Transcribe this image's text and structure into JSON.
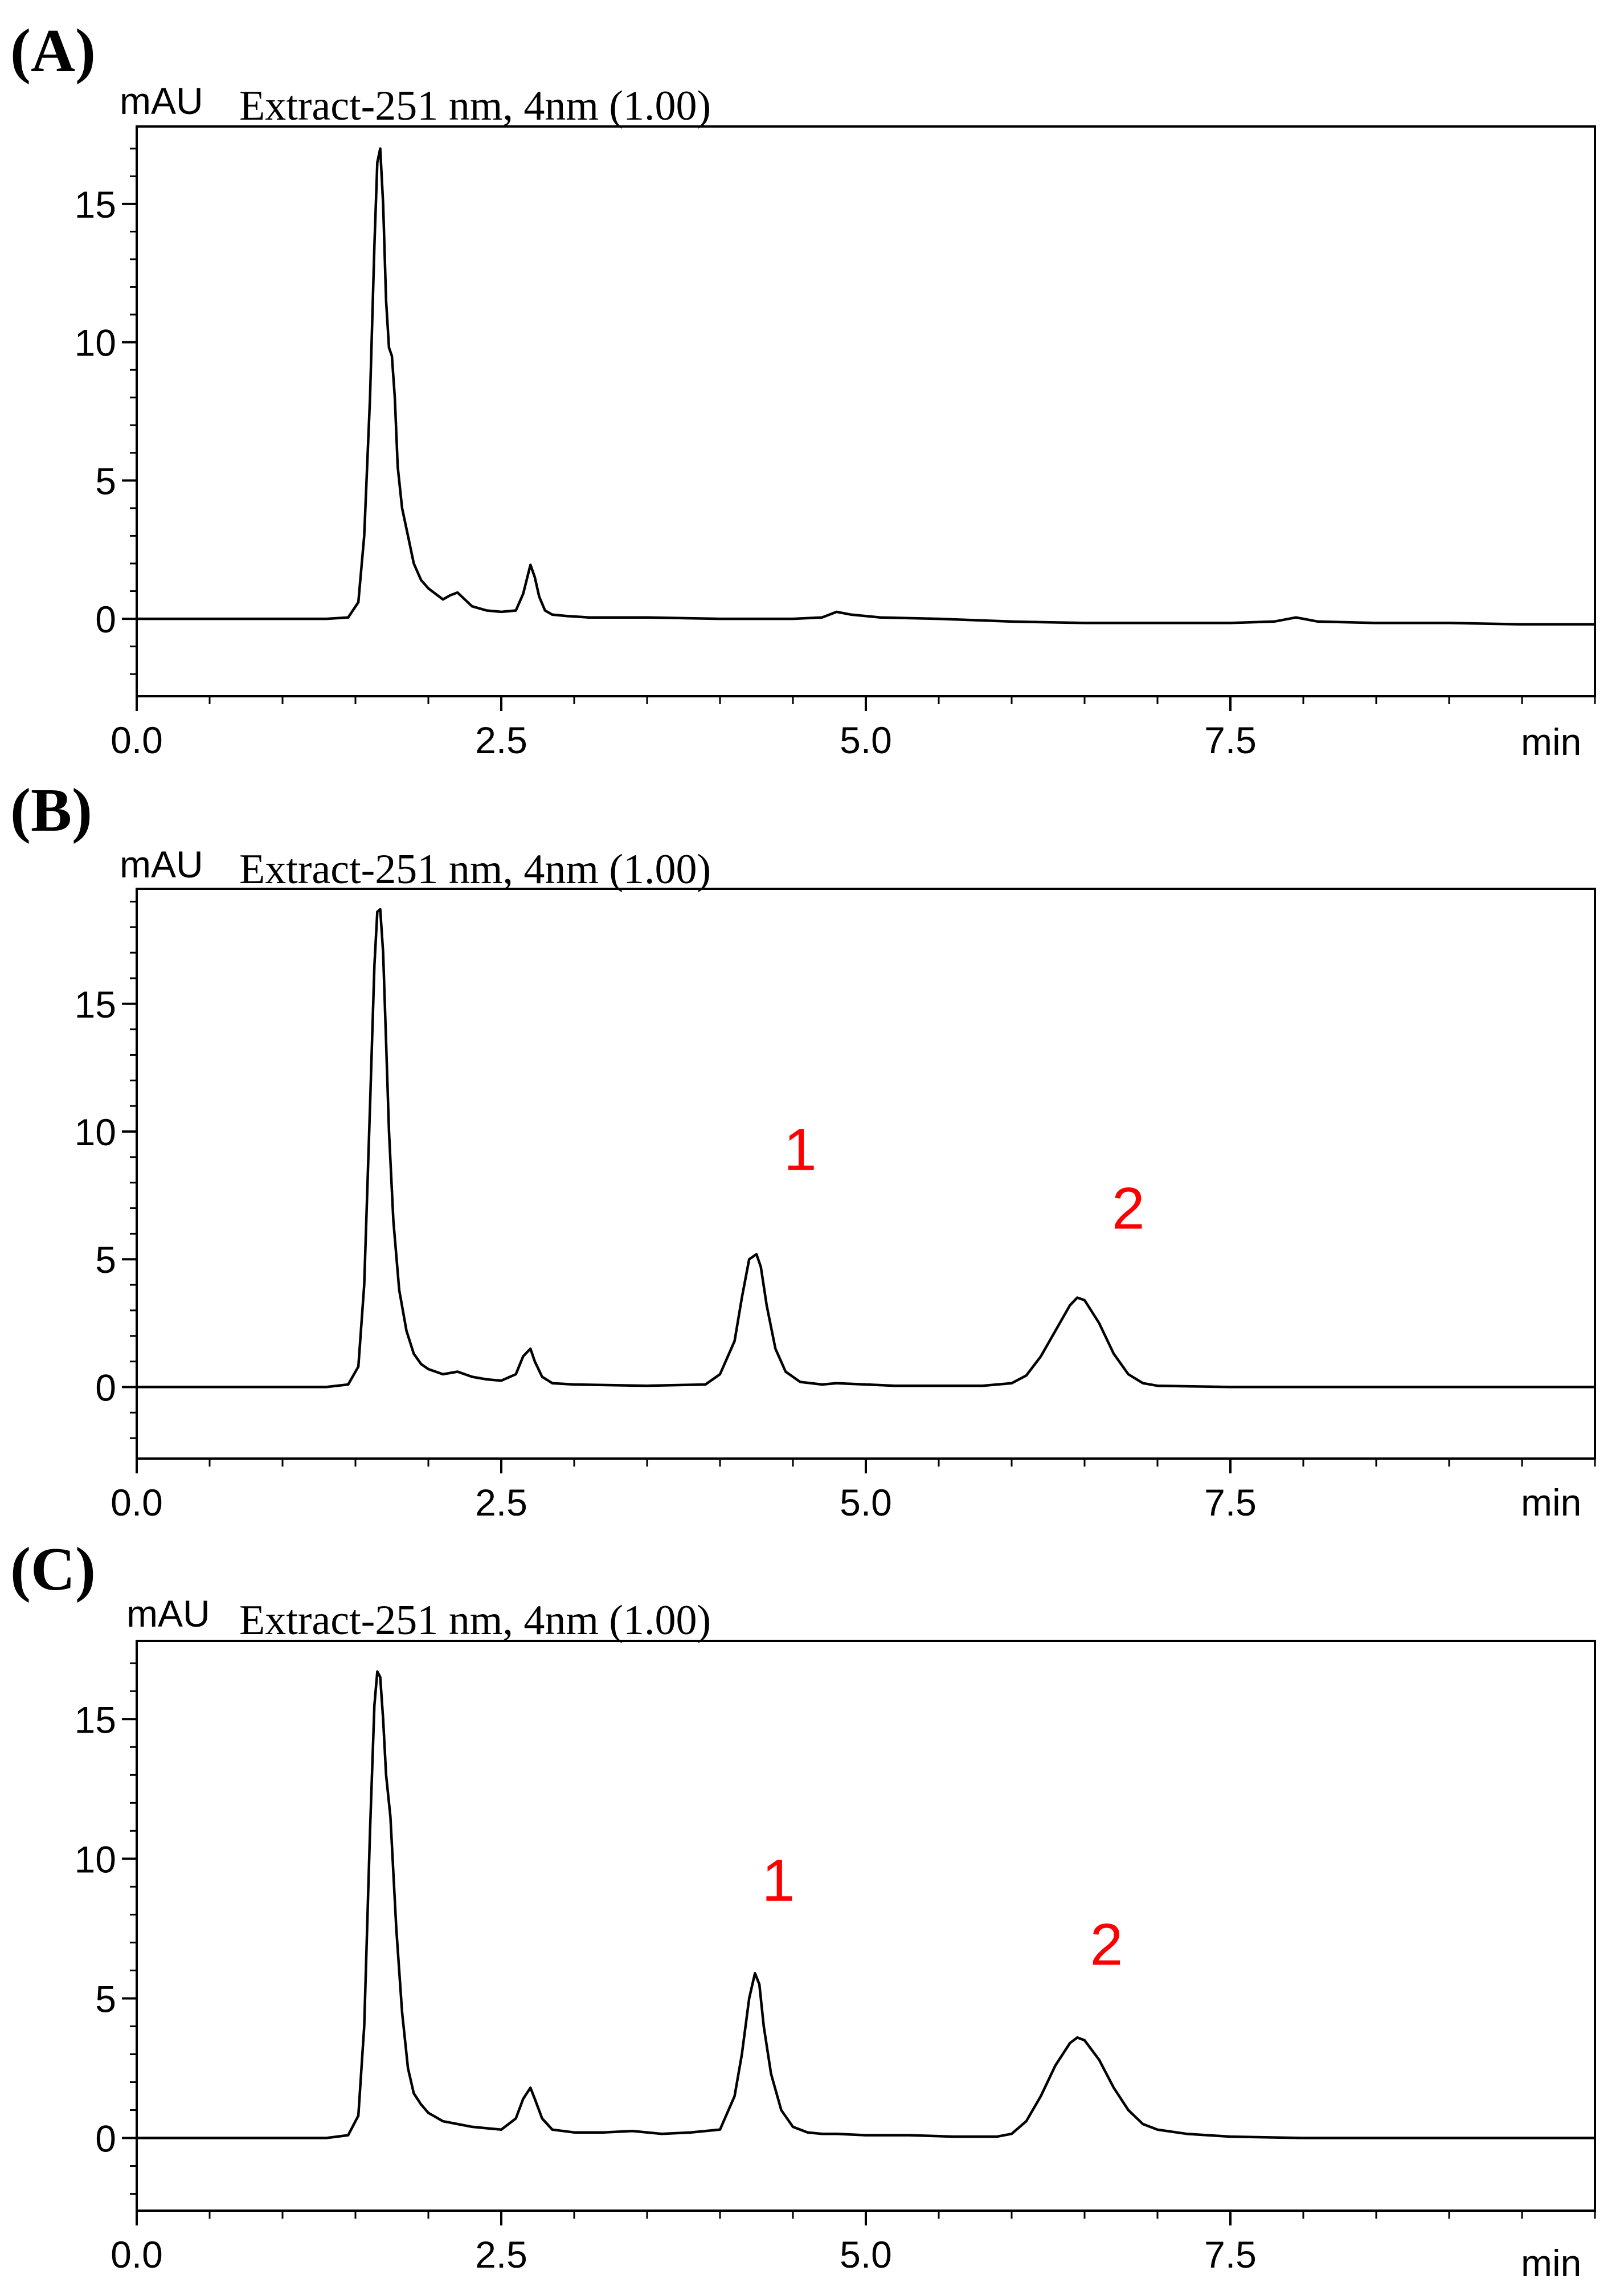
{
  "chart_data": [
    {
      "type": "line",
      "panel_label": "(A)",
      "ylabel": "mAU",
      "series_label": "Extract-251 nm, 4nm (1.00)",
      "xlabel": "min",
      "xlim": [
        0,
        10
      ],
      "ylim": [
        -2.8,
        17.8
      ],
      "xticks": [
        "0.0",
        "2.5",
        "5.0",
        "7.5"
      ],
      "xtick_values": [
        0,
        2.5,
        5.0,
        7.5
      ],
      "yticks": [
        "0",
        "5",
        "10",
        "15"
      ],
      "ytick_values": [
        0,
        5,
        10,
        15
      ],
      "x": [
        0.0,
        0.5,
        1.0,
        1.3,
        1.45,
        1.52,
        1.56,
        1.6,
        1.63,
        1.65,
        1.67,
        1.69,
        1.71,
        1.73,
        1.75,
        1.77,
        1.79,
        1.82,
        1.86,
        1.9,
        1.95,
        2.0,
        2.05,
        2.1,
        2.15,
        2.2,
        2.25,
        2.3,
        2.4,
        2.5,
        2.6,
        2.65,
        2.7,
        2.73,
        2.76,
        2.8,
        2.85,
        2.95,
        3.1,
        3.5,
        4.0,
        4.5,
        4.7,
        4.8,
        4.9,
        5.1,
        5.5,
        6.0,
        6.5,
        7.0,
        7.5,
        7.8,
        7.95,
        8.1,
        8.5,
        9.0,
        9.5,
        10.0
      ],
      "values": [
        0.0,
        0.0,
        0.0,
        0.0,
        0.05,
        0.6,
        3.0,
        8.0,
        13.5,
        16.5,
        17.0,
        15.0,
        11.5,
        9.8,
        9.5,
        8.0,
        5.5,
        4.0,
        3.0,
        2.0,
        1.4,
        1.1,
        0.9,
        0.7,
        0.85,
        0.95,
        0.7,
        0.45,
        0.3,
        0.25,
        0.3,
        0.9,
        1.95,
        1.5,
        0.8,
        0.3,
        0.15,
        0.1,
        0.05,
        0.05,
        0.0,
        0.0,
        0.05,
        0.25,
        0.15,
        0.05,
        0.0,
        -0.1,
        -0.15,
        -0.15,
        -0.15,
        -0.1,
        0.05,
        -0.1,
        -0.15,
        -0.15,
        -0.2,
        -0.2
      ],
      "peak_labels": []
    },
    {
      "type": "line",
      "panel_label": "(B)",
      "ylabel": "mAU",
      "series_label": "Extract-251 nm, 4nm (1.00)",
      "xlabel": "min",
      "xlim": [
        0,
        10
      ],
      "ylim": [
        -2.8,
        19.5
      ],
      "xticks": [
        "0.0",
        "2.5",
        "5.0",
        "7.5"
      ],
      "xtick_values": [
        0,
        2.5,
        5.0,
        7.5
      ],
      "yticks": [
        "0",
        "5",
        "10",
        "15"
      ],
      "ytick_values": [
        0,
        5,
        10,
        15
      ],
      "x": [
        0.0,
        0.5,
        1.0,
        1.3,
        1.45,
        1.52,
        1.56,
        1.6,
        1.63,
        1.65,
        1.67,
        1.69,
        1.71,
        1.73,
        1.76,
        1.8,
        1.85,
        1.9,
        1.95,
        2.0,
        2.1,
        2.2,
        2.3,
        2.4,
        2.5,
        2.6,
        2.65,
        2.7,
        2.73,
        2.78,
        2.85,
        3.0,
        3.5,
        3.9,
        4.0,
        4.1,
        4.15,
        4.2,
        4.25,
        4.28,
        4.32,
        4.38,
        4.45,
        4.55,
        4.7,
        4.8,
        5.0,
        5.2,
        5.5,
        5.8,
        6.0,
        6.1,
        6.2,
        6.3,
        6.4,
        6.45,
        6.5,
        6.6,
        6.7,
        6.8,
        6.9,
        7.0,
        7.5,
        8.0,
        9.0,
        10.0
      ],
      "values": [
        0.0,
        0.0,
        0.0,
        0.0,
        0.1,
        0.8,
        4.0,
        11.0,
        16.5,
        18.6,
        18.7,
        17.0,
        13.5,
        10.0,
        6.5,
        3.8,
        2.2,
        1.3,
        0.9,
        0.7,
        0.5,
        0.6,
        0.4,
        0.3,
        0.25,
        0.5,
        1.2,
        1.5,
        1.0,
        0.4,
        0.15,
        0.1,
        0.05,
        0.1,
        0.5,
        1.8,
        3.5,
        5.0,
        5.2,
        4.7,
        3.2,
        1.5,
        0.6,
        0.2,
        0.1,
        0.15,
        0.1,
        0.05,
        0.05,
        0.05,
        0.15,
        0.45,
        1.2,
        2.2,
        3.2,
        3.5,
        3.4,
        2.5,
        1.3,
        0.5,
        0.15,
        0.05,
        0.0,
        0.0,
        0.0,
        0.0
      ],
      "peak_labels": [
        {
          "text": "1",
          "x": 4.55,
          "y": 8.5
        },
        {
          "text": "2",
          "x": 6.8,
          "y": 6.2
        }
      ]
    },
    {
      "type": "line",
      "panel_label": "(C)",
      "ylabel": "mAU",
      "series_label": "Extract-251 nm, 4nm (1.00)",
      "xlabel": "min",
      "xlim": [
        0,
        10
      ],
      "ylim": [
        -2.6,
        17.8
      ],
      "xticks": [
        "0.0",
        "2.5",
        "5.0",
        "7.5"
      ],
      "xtick_values": [
        0,
        2.5,
        5.0,
        7.5
      ],
      "yticks": [
        "0",
        "5",
        "10",
        "15"
      ],
      "ytick_values": [
        0,
        5,
        10,
        15
      ],
      "x": [
        0.0,
        0.5,
        1.0,
        1.3,
        1.45,
        1.52,
        1.56,
        1.6,
        1.63,
        1.65,
        1.67,
        1.69,
        1.71,
        1.74,
        1.78,
        1.82,
        1.86,
        1.9,
        1.95,
        2.0,
        2.1,
        2.2,
        2.3,
        2.4,
        2.5,
        2.6,
        2.65,
        2.7,
        2.73,
        2.78,
        2.85,
        3.0,
        3.2,
        3.4,
        3.6,
        3.8,
        4.0,
        4.1,
        4.15,
        4.2,
        4.24,
        4.27,
        4.3,
        4.35,
        4.42,
        4.5,
        4.6,
        4.7,
        4.8,
        5.0,
        5.3,
        5.6,
        5.9,
        6.0,
        6.1,
        6.2,
        6.3,
        6.4,
        6.45,
        6.5,
        6.6,
        6.7,
        6.8,
        6.9,
        7.0,
        7.2,
        7.5,
        8.0,
        9.0,
        10.0
      ],
      "values": [
        0.0,
        0.0,
        0.0,
        0.0,
        0.1,
        0.8,
        4.0,
        11.0,
        15.5,
        16.7,
        16.5,
        15.0,
        13.0,
        11.5,
        7.5,
        4.5,
        2.5,
        1.6,
        1.2,
        0.9,
        0.6,
        0.5,
        0.4,
        0.35,
        0.3,
        0.7,
        1.4,
        1.8,
        1.4,
        0.7,
        0.3,
        0.2,
        0.2,
        0.25,
        0.15,
        0.2,
        0.3,
        1.5,
        3.0,
        5.0,
        5.9,
        5.5,
        4.0,
        2.3,
        1.0,
        0.4,
        0.2,
        0.15,
        0.15,
        0.1,
        0.1,
        0.05,
        0.05,
        0.15,
        0.6,
        1.5,
        2.6,
        3.4,
        3.6,
        3.5,
        2.8,
        1.8,
        1.0,
        0.5,
        0.3,
        0.15,
        0.05,
        0.0,
        0.0,
        0.0
      ],
      "peak_labels": [
        {
          "text": "1",
          "x": 4.4,
          "y": 8.5
        },
        {
          "text": "2",
          "x": 6.65,
          "y": 6.2
        }
      ]
    }
  ]
}
